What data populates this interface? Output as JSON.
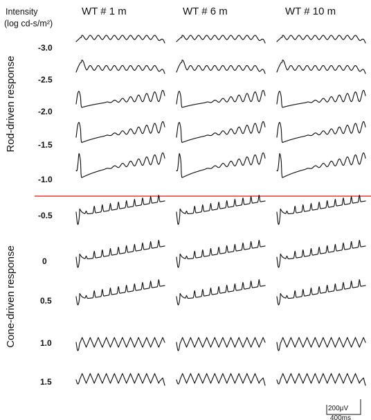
{
  "intensity_header": {
    "line1": "Intensity",
    "line2": "(log cd-s/m²)"
  },
  "columns": [
    "WT # 1 m",
    "WT # 6 m",
    "WT # 10 m"
  ],
  "intensities": [
    "-3.0",
    "-2.5",
    "-2.0",
    "-1.5",
    "-1.0",
    "-0.5",
    "0",
    "0.5",
    "1.0",
    "1.5"
  ],
  "groups": {
    "rod": "Rod-driven response",
    "cone": "Cone-driven response"
  },
  "scale_bar": {
    "amplitude": "200μV",
    "time": "400ms"
  },
  "colors": {
    "trace": "#111111",
    "divider": "#e8382e"
  }
}
